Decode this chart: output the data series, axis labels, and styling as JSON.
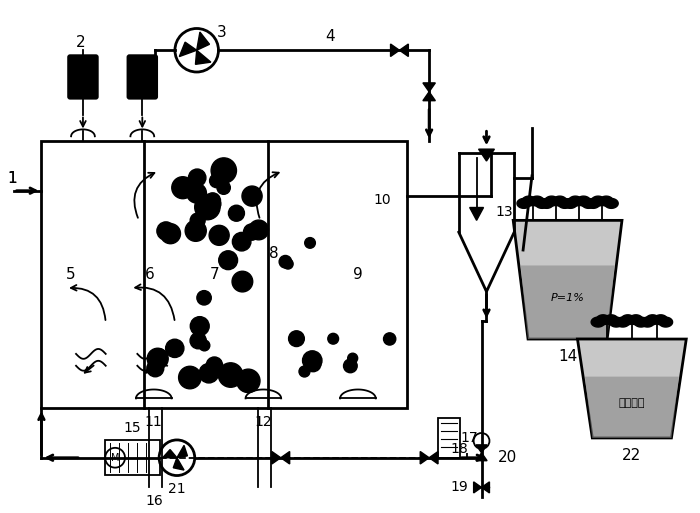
{
  "bg_color": "#ffffff",
  "line_color": "#000000",
  "figsize": [
    7.0,
    5.13
  ],
  "dpi": 100
}
